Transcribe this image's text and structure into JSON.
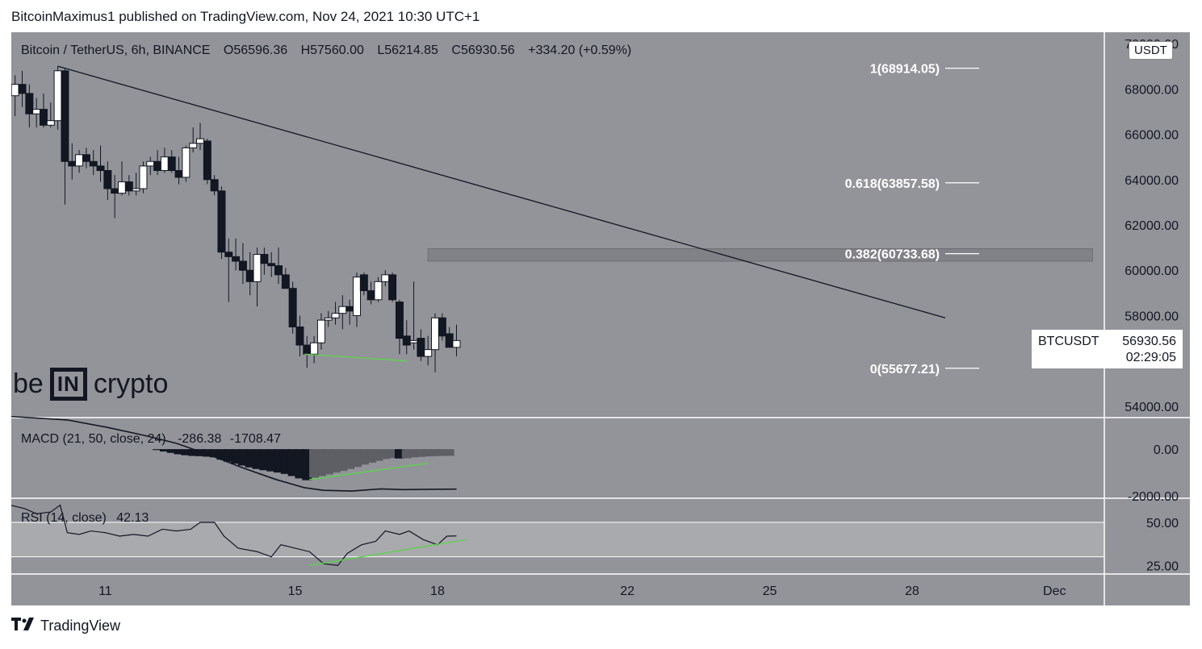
{
  "header": {
    "published": "BitcoinMaximus1 published on TradingView.com, Nov 24, 2021 10:30 UTC+1"
  },
  "legend": {
    "symbol": "Bitcoin / TetherUS, 6h, BINANCE",
    "open_label": "O",
    "open": "56596.36",
    "high_label": "H",
    "high": "57560.00",
    "low_label": "L",
    "low": "56214.85",
    "close_label": "C",
    "close": "56930.56",
    "change": "+334.20 (+0.59%)"
  },
  "currency_badge": "USDT",
  "price_label": {
    "symbol": "BTCUSDT",
    "price": "56930.56",
    "countdown": "02:29:05"
  },
  "watermark": {
    "left": "be",
    "middle": "IN",
    "right": "crypto"
  },
  "macd_legend": {
    "title": "MACD (21, 50, close, 24)",
    "v1": "-286.38",
    "v2": "-1708.47"
  },
  "rsi_legend": {
    "title": "RSI (14, close)",
    "value": "42.13"
  },
  "footer": {
    "brand": "TradingView"
  },
  "colors": {
    "frame_bg": "#93949a",
    "up": "#ffffff",
    "down": "#131722",
    "trend": "#131722",
    "green": "#5bd44a",
    "band": "#a9aaae"
  },
  "chart_data": [
    {
      "type": "candlestick",
      "title": "Bitcoin / TetherUS, 6h, BINANCE",
      "yaxis_ticks": [
        "70000.00",
        "68000.00",
        "66000.00",
        "64000.00",
        "62000.00",
        "60000.00",
        "58000.00",
        "56000.00",
        "54000.00"
      ],
      "ylim": [
        53500,
        70500
      ],
      "xaxis_ticks": [
        "11",
        "15",
        "18",
        "22",
        "25",
        "28",
        "Dec"
      ],
      "xaxis_positions_days": [
        11,
        15,
        18,
        22,
        25,
        28,
        31
      ],
      "xlim_days": [
        9.02,
        32.05
      ],
      "candles": [
        {
          "t": 9.1,
          "o": 67700,
          "h": 68600,
          "l": 66800,
          "c": 68200
        },
        {
          "t": 9.25,
          "o": 68200,
          "h": 68800,
          "l": 67200,
          "c": 67800
        },
        {
          "t": 9.4,
          "o": 67800,
          "h": 68200,
          "l": 66300,
          "c": 66900
        },
        {
          "t": 9.55,
          "o": 66900,
          "h": 67600,
          "l": 66300,
          "c": 67100
        },
        {
          "t": 9.7,
          "o": 67100,
          "h": 67800,
          "l": 66300,
          "c": 66400
        },
        {
          "t": 9.85,
          "o": 66400,
          "h": 67400,
          "l": 66300,
          "c": 66600
        },
        {
          "t": 10.0,
          "o": 66600,
          "h": 69000,
          "l": 66200,
          "c": 68800
        },
        {
          "t": 10.15,
          "o": 68800,
          "h": 68900,
          "l": 62900,
          "c": 64800
        },
        {
          "t": 10.3,
          "o": 64800,
          "h": 65600,
          "l": 64000,
          "c": 64600
        },
        {
          "t": 10.45,
          "o": 64600,
          "h": 65300,
          "l": 64300,
          "c": 65100
        },
        {
          "t": 10.6,
          "o": 65100,
          "h": 65400,
          "l": 64500,
          "c": 64800
        },
        {
          "t": 10.75,
          "o": 64800,
          "h": 65300,
          "l": 64200,
          "c": 64600
        },
        {
          "t": 10.9,
          "o": 64600,
          "h": 65500,
          "l": 63900,
          "c": 64400
        },
        {
          "t": 11.05,
          "o": 64400,
          "h": 64800,
          "l": 63100,
          "c": 63600
        },
        {
          "t": 11.2,
          "o": 63600,
          "h": 64200,
          "l": 62300,
          "c": 63400
        },
        {
          "t": 11.35,
          "o": 63400,
          "h": 64800,
          "l": 63300,
          "c": 63900
        },
        {
          "t": 11.5,
          "o": 63900,
          "h": 64200,
          "l": 63300,
          "c": 63500
        },
        {
          "t": 11.65,
          "o": 63500,
          "h": 64300,
          "l": 63300,
          "c": 63600
        },
        {
          "t": 11.8,
          "o": 63600,
          "h": 64800,
          "l": 63400,
          "c": 64600
        },
        {
          "t": 11.95,
          "o": 64600,
          "h": 65000,
          "l": 64200,
          "c": 64800
        },
        {
          "t": 12.1,
          "o": 64800,
          "h": 65300,
          "l": 64200,
          "c": 64400
        },
        {
          "t": 12.25,
          "o": 64400,
          "h": 65400,
          "l": 64300,
          "c": 65000
        },
        {
          "t": 12.4,
          "o": 65000,
          "h": 65300,
          "l": 64300,
          "c": 64400
        },
        {
          "t": 12.55,
          "o": 64400,
          "h": 65000,
          "l": 63800,
          "c": 64100
        },
        {
          "t": 12.7,
          "o": 64100,
          "h": 65500,
          "l": 63900,
          "c": 65400
        },
        {
          "t": 12.85,
          "o": 65400,
          "h": 66300,
          "l": 65200,
          "c": 65600
        },
        {
          "t": 13.0,
          "o": 65600,
          "h": 66500,
          "l": 65300,
          "c": 65800
        },
        {
          "t": 13.15,
          "o": 65700,
          "h": 65800,
          "l": 63800,
          "c": 64000
        },
        {
          "t": 13.3,
          "o": 64000,
          "h": 64200,
          "l": 63300,
          "c": 63500
        },
        {
          "t": 13.45,
          "o": 63500,
          "h": 63700,
          "l": 60500,
          "c": 60800
        },
        {
          "t": 13.6,
          "o": 60800,
          "h": 61400,
          "l": 58600,
          "c": 60600
        },
        {
          "t": 13.75,
          "o": 60600,
          "h": 61400,
          "l": 60000,
          "c": 60400
        },
        {
          "t": 13.9,
          "o": 60400,
          "h": 61200,
          "l": 59400,
          "c": 60000
        },
        {
          "t": 14.05,
          "o": 60000,
          "h": 60800,
          "l": 58900,
          "c": 59500
        },
        {
          "t": 14.2,
          "o": 59500,
          "h": 61000,
          "l": 58400,
          "c": 60700
        },
        {
          "t": 14.35,
          "o": 60700,
          "h": 61000,
          "l": 59800,
          "c": 60300
        },
        {
          "t": 14.5,
          "o": 60300,
          "h": 60800,
          "l": 59700,
          "c": 60200
        },
        {
          "t": 14.65,
          "o": 60200,
          "h": 61000,
          "l": 59400,
          "c": 59800
        },
        {
          "t": 14.8,
          "o": 59800,
          "h": 60100,
          "l": 59200,
          "c": 59200
        },
        {
          "t": 14.95,
          "o": 59200,
          "h": 59500,
          "l": 57200,
          "c": 57500
        },
        {
          "t": 15.1,
          "o": 57500,
          "h": 58000,
          "l": 56200,
          "c": 56700
        },
        {
          "t": 15.25,
          "o": 56700,
          "h": 57100,
          "l": 55700,
          "c": 56300
        },
        {
          "t": 15.4,
          "o": 56300,
          "h": 57100,
          "l": 55900,
          "c": 56800
        },
        {
          "t": 15.55,
          "o": 56800,
          "h": 58100,
          "l": 56500,
          "c": 57800
        },
        {
          "t": 15.7,
          "o": 57800,
          "h": 58200,
          "l": 57500,
          "c": 57900
        },
        {
          "t": 15.85,
          "o": 57900,
          "h": 58600,
          "l": 57600,
          "c": 58100
        },
        {
          "t": 16.0,
          "o": 58100,
          "h": 58900,
          "l": 57400,
          "c": 58400
        },
        {
          "t": 16.15,
          "o": 58400,
          "h": 58700,
          "l": 57600,
          "c": 58200
        },
        {
          "t": 16.3,
          "o": 58000,
          "h": 59900,
          "l": 57500,
          "c": 59700
        },
        {
          "t": 16.45,
          "o": 59800,
          "h": 59900,
          "l": 58900,
          "c": 59100
        },
        {
          "t": 16.6,
          "o": 59100,
          "h": 59500,
          "l": 58500,
          "c": 58700
        },
        {
          "t": 16.75,
          "o": 58700,
          "h": 59700,
          "l": 58600,
          "c": 59500
        },
        {
          "t": 16.9,
          "o": 59500,
          "h": 60000,
          "l": 59300,
          "c": 59800
        },
        {
          "t": 17.05,
          "o": 59800,
          "h": 59900,
          "l": 58600,
          "c": 58700
        },
        {
          "t": 17.2,
          "o": 58600,
          "h": 58700,
          "l": 56300,
          "c": 57000
        },
        {
          "t": 17.35,
          "o": 57100,
          "h": 57800,
          "l": 56300,
          "c": 56700
        },
        {
          "t": 17.5,
          "o": 56800,
          "h": 59500,
          "l": 56500,
          "c": 56900
        },
        {
          "t": 17.65,
          "o": 57000,
          "h": 57400,
          "l": 56000,
          "c": 56200
        },
        {
          "t": 17.8,
          "o": 56200,
          "h": 57100,
          "l": 55800,
          "c": 56500
        },
        {
          "t": 17.95,
          "o": 56500,
          "h": 58100,
          "l": 55500,
          "c": 57900
        },
        {
          "t": 18.1,
          "o": 57900,
          "h": 58100,
          "l": 56900,
          "c": 57100
        },
        {
          "t": 18.25,
          "o": 57200,
          "h": 57500,
          "l": 56600,
          "c": 56600
        },
        {
          "t": 18.4,
          "o": 56600,
          "h": 57600,
          "l": 56200,
          "c": 56900
        }
      ],
      "fib_levels": [
        {
          "ratio": "1",
          "label": "1(68914.05)",
          "price": 68914.05
        },
        {
          "ratio": "0.618",
          "label": "0.618(63857.58)",
          "price": 63857.58
        },
        {
          "ratio": "0.382",
          "label": "0.382(60733.68)",
          "price": 60733.68
        },
        {
          "ratio": "0",
          "label": "0(55677.21)",
          "price": 55677.21
        }
      ],
      "resistance_zone": {
        "from_day": 17.8,
        "to_day": 31.8,
        "low": 60400,
        "high": 60950
      },
      "descending_trendline": [
        {
          "t": 10.0,
          "p": 69000
        },
        {
          "t": 28.7,
          "p": 57900
        }
      ],
      "support_line": [
        {
          "t": 15.2,
          "p": 56300
        },
        {
          "t": 17.35,
          "p": 56000
        }
      ],
      "last_price": 56930.56
    },
    {
      "type": "histogram",
      "title": "MACD (21, 50, close, 24)",
      "yaxis_ticks": [
        "0.00",
        "-2000.00"
      ],
      "ylim": [
        -2100,
        1350
      ],
      "histogram": [
        {
          "t": 12.1,
          "v": -40
        },
        {
          "t": 12.25,
          "v": -100
        },
        {
          "t": 12.4,
          "v": -160
        },
        {
          "t": 12.55,
          "v": -220
        },
        {
          "t": 12.7,
          "v": -260
        },
        {
          "t": 12.85,
          "v": -290
        },
        {
          "t": 13.0,
          "v": -300
        },
        {
          "t": 13.15,
          "v": -320
        },
        {
          "t": 13.3,
          "v": -350
        },
        {
          "t": 13.45,
          "v": -450
        },
        {
          "t": 13.6,
          "v": -540
        },
        {
          "t": 13.75,
          "v": -620
        },
        {
          "t": 13.9,
          "v": -700
        },
        {
          "t": 14.05,
          "v": -780
        },
        {
          "t": 14.2,
          "v": -850
        },
        {
          "t": 14.35,
          "v": -900
        },
        {
          "t": 14.5,
          "v": -950
        },
        {
          "t": 14.65,
          "v": -1000
        },
        {
          "t": 14.8,
          "v": -1060
        },
        {
          "t": 14.95,
          "v": -1150
        },
        {
          "t": 15.1,
          "v": -1250
        },
        {
          "t": 15.25,
          "v": -1330
        },
        {
          "t": 15.4,
          "v": -1220
        },
        {
          "t": 15.55,
          "v": -1150
        },
        {
          "t": 15.7,
          "v": -1080
        },
        {
          "t": 15.85,
          "v": -1000
        },
        {
          "t": 16.0,
          "v": -930
        },
        {
          "t": 16.15,
          "v": -850
        },
        {
          "t": 16.3,
          "v": -760
        },
        {
          "t": 16.45,
          "v": -660
        },
        {
          "t": 16.6,
          "v": -580
        },
        {
          "t": 16.75,
          "v": -500
        },
        {
          "t": 16.9,
          "v": -420
        },
        {
          "t": 17.05,
          "v": -380
        },
        {
          "t": 17.2,
          "v": -400
        },
        {
          "t": 17.35,
          "v": -390
        },
        {
          "t": 17.5,
          "v": -350
        },
        {
          "t": 17.65,
          "v": -330
        },
        {
          "t": 17.8,
          "v": -310
        },
        {
          "t": 17.95,
          "v": -300
        },
        {
          "t": 18.1,
          "v": -290
        },
        {
          "t": 18.25,
          "v": -286
        }
      ],
      "signal_line": [
        {
          "t": 9.0,
          "v": 1400
        },
        {
          "t": 10.2,
          "v": 1250
        },
        {
          "t": 11.0,
          "v": 950
        },
        {
          "t": 11.8,
          "v": 600
        },
        {
          "t": 12.5,
          "v": 250
        },
        {
          "t": 13.2,
          "v": -250
        },
        {
          "t": 13.9,
          "v": -800
        },
        {
          "t": 14.6,
          "v": -1300
        },
        {
          "t": 15.2,
          "v": -1650
        },
        {
          "t": 15.6,
          "v": -1760
        },
        {
          "t": 16.2,
          "v": -1790
        },
        {
          "t": 16.8,
          "v": -1700
        },
        {
          "t": 17.3,
          "v": -1730
        },
        {
          "t": 17.8,
          "v": -1720
        },
        {
          "t": 18.4,
          "v": -1708
        }
      ],
      "divergence_line": [
        {
          "t": 15.3,
          "v": -1300
        },
        {
          "t": 17.8,
          "v": -600
        }
      ]
    },
    {
      "type": "line",
      "title": "RSI (14, close)",
      "yaxis_ticks": [
        "50.00",
        "25.00"
      ],
      "ylim": [
        20,
        64
      ],
      "band": [
        30,
        50
      ],
      "values": [
        {
          "t": 9.0,
          "v": 60
        },
        {
          "t": 9.3,
          "v": 58
        },
        {
          "t": 9.55,
          "v": 55
        },
        {
          "t": 9.85,
          "v": 56
        },
        {
          "t": 10.05,
          "v": 60
        },
        {
          "t": 10.2,
          "v": 44
        },
        {
          "t": 10.45,
          "v": 43
        },
        {
          "t": 10.7,
          "v": 45
        },
        {
          "t": 11.0,
          "v": 44
        },
        {
          "t": 11.3,
          "v": 42
        },
        {
          "t": 11.6,
          "v": 43
        },
        {
          "t": 11.9,
          "v": 42
        },
        {
          "t": 12.2,
          "v": 46
        },
        {
          "t": 12.5,
          "v": 45
        },
        {
          "t": 12.8,
          "v": 46
        },
        {
          "t": 13.0,
          "v": 50
        },
        {
          "t": 13.3,
          "v": 50
        },
        {
          "t": 13.5,
          "v": 42
        },
        {
          "t": 13.8,
          "v": 35
        },
        {
          "t": 14.2,
          "v": 33
        },
        {
          "t": 14.5,
          "v": 30
        },
        {
          "t": 14.7,
          "v": 37
        },
        {
          "t": 15.0,
          "v": 35
        },
        {
          "t": 15.3,
          "v": 33
        },
        {
          "t": 15.6,
          "v": 26
        },
        {
          "t": 15.9,
          "v": 25
        },
        {
          "t": 16.1,
          "v": 32
        },
        {
          "t": 16.4,
          "v": 37
        },
        {
          "t": 16.7,
          "v": 39
        },
        {
          "t": 16.9,
          "v": 45
        },
        {
          "t": 17.2,
          "v": 43
        },
        {
          "t": 17.4,
          "v": 45
        },
        {
          "t": 17.7,
          "v": 40
        },
        {
          "t": 18.0,
          "v": 37
        },
        {
          "t": 18.2,
          "v": 42
        },
        {
          "t": 18.4,
          "v": 42.13
        }
      ],
      "divergence_line": [
        {
          "t": 15.3,
          "v": 25
        },
        {
          "t": 18.6,
          "v": 40
        }
      ]
    }
  ]
}
